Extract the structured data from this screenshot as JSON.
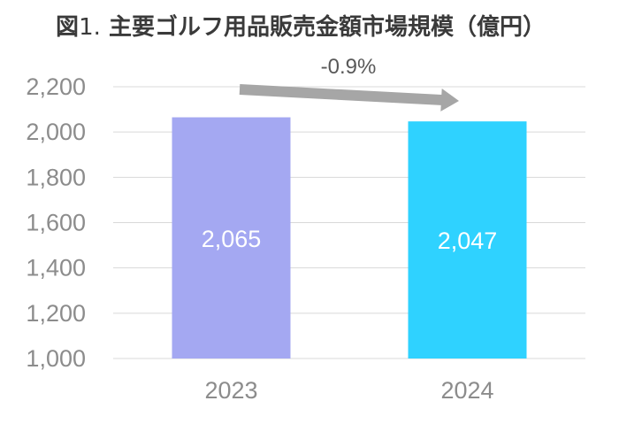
{
  "title": {
    "prefix": "図",
    "number": "1.",
    "text": "主要ゴルフ用品販売金額市場規模（億円）"
  },
  "annotation": {
    "change_label": "-0.9%",
    "arrow_color": "#a6a6a6"
  },
  "colors": {
    "grid": "#d9d9d9",
    "tick_text": "#8c8c8c",
    "bar_label": "#ffffff"
  },
  "chart_data": {
    "type": "bar",
    "categories": [
      "2023",
      "2024"
    ],
    "values": [
      2065,
      2047
    ],
    "value_labels": [
      "2,065",
      "2,047"
    ],
    "bar_colors": [
      "#a4a8f2",
      "#2fd2ff"
    ],
    "ylim": [
      1000,
      2200
    ],
    "yticks": [
      1000,
      1200,
      1400,
      1600,
      1800,
      2000,
      2200
    ],
    "ytick_labels": [
      "1,000",
      "1,200",
      "1,400",
      "1,600",
      "1,800",
      "2,000",
      "2,200"
    ],
    "grid": true,
    "xlabel": "",
    "ylabel": ""
  }
}
